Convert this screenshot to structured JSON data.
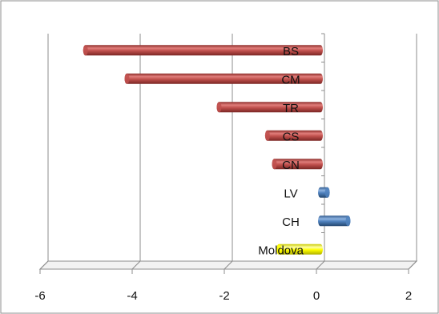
{
  "chart_data": {
    "type": "bar",
    "orientation": "horizontal",
    "style": "3d-cylinder",
    "title": "",
    "xlabel": "",
    "ylabel": "",
    "xlim": [
      -6,
      2
    ],
    "x_ticks": [
      "-6",
      "-4",
      "-2",
      "0",
      "2"
    ],
    "grid": true,
    "legend": "none",
    "categories": [
      "BS",
      "CM",
      "TR",
      "CS",
      "CN",
      "LV",
      "CH",
      "Moldova"
    ],
    "values": [
      -5.1,
      -4.2,
      -2.2,
      -1.15,
      -1.0,
      0.15,
      0.6,
      -0.9
    ],
    "bar_colors": [
      "#c0504d",
      "#c0504d",
      "#c0504d",
      "#c0504d",
      "#c0504d",
      "#4f81bd",
      "#4f81bd",
      "#ffff00"
    ]
  }
}
